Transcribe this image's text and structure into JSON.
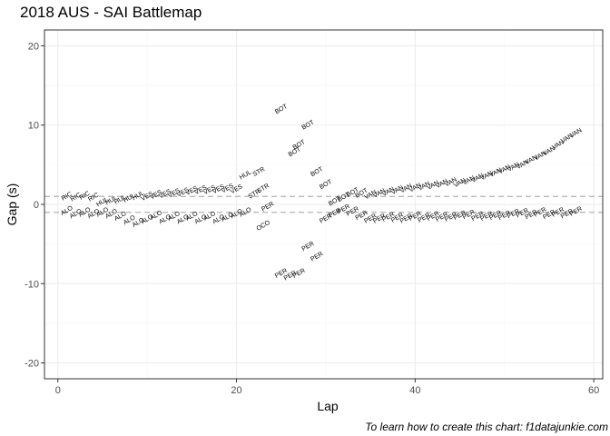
{
  "chart_data": {
    "type": "scatter",
    "title": "2018 AUS - SAI Battlemap",
    "xlabel": "Lap",
    "ylabel": "Gap (s)",
    "caption": "To learn how to create this chart: f1datajunkie.com",
    "xlim": [
      -1.5,
      61
    ],
    "ylim": [
      -22,
      22
    ],
    "xticks": [
      0,
      20,
      40,
      60
    ],
    "yticks": [
      -20,
      -10,
      0,
      10,
      20
    ],
    "grid": true,
    "reference_lines": [
      1,
      -1
    ],
    "label_angle": 30,
    "points": [
      {
        "x": 1,
        "y": 1.0,
        "label": "RIC"
      },
      {
        "x": 1,
        "y": -0.8,
        "label": "ALO"
      },
      {
        "x": 2,
        "y": 0.9,
        "label": "RIC"
      },
      {
        "x": 2,
        "y": -1.2,
        "label": "ALO"
      },
      {
        "x": 3,
        "y": 1.1,
        "label": "RIC"
      },
      {
        "x": 3,
        "y": -1.0,
        "label": "ALO"
      },
      {
        "x": 4,
        "y": 0.9,
        "label": "RIC"
      },
      {
        "x": 4,
        "y": -1.2,
        "label": "ALO"
      },
      {
        "x": 5,
        "y": 0.3,
        "label": "HUL"
      },
      {
        "x": 5,
        "y": -1.0,
        "label": "ALO"
      },
      {
        "x": 6,
        "y": 0.5,
        "label": "HUL"
      },
      {
        "x": 6,
        "y": -1.2,
        "label": "ALO"
      },
      {
        "x": 7,
        "y": 0.6,
        "label": "HUL"
      },
      {
        "x": 7,
        "y": -1.5,
        "label": "ALO"
      },
      {
        "x": 8,
        "y": 0.8,
        "label": "HUL"
      },
      {
        "x": 8,
        "y": -2.0,
        "label": "ALO"
      },
      {
        "x": 9,
        "y": 1.1,
        "label": "HUL"
      },
      {
        "x": 9,
        "y": -2.3,
        "label": "ALO"
      },
      {
        "x": 10,
        "y": 1.0,
        "label": "VES"
      },
      {
        "x": 10,
        "y": -1.9,
        "label": "ALO"
      },
      {
        "x": 11,
        "y": 1.2,
        "label": "VES"
      },
      {
        "x": 11,
        "y": -1.4,
        "label": "ALO"
      },
      {
        "x": 12,
        "y": 1.3,
        "label": "VES"
      },
      {
        "x": 12,
        "y": -1.9,
        "label": "ALO"
      },
      {
        "x": 13,
        "y": 1.4,
        "label": "VES"
      },
      {
        "x": 13,
        "y": -1.5,
        "label": "ALO"
      },
      {
        "x": 14,
        "y": 1.5,
        "label": "VES"
      },
      {
        "x": 14,
        "y": -1.9,
        "label": "ALO"
      },
      {
        "x": 15,
        "y": 1.7,
        "label": "VES"
      },
      {
        "x": 15,
        "y": -1.5,
        "label": "ALO"
      },
      {
        "x": 16,
        "y": 1.8,
        "label": "VES"
      },
      {
        "x": 16,
        "y": -1.9,
        "label": "ALO"
      },
      {
        "x": 17,
        "y": 1.8,
        "label": "VES"
      },
      {
        "x": 17,
        "y": -1.5,
        "label": "ALO"
      },
      {
        "x": 18,
        "y": 1.9,
        "label": "VES"
      },
      {
        "x": 18,
        "y": -1.9,
        "label": "ALO"
      },
      {
        "x": 19,
        "y": 2.0,
        "label": "VES"
      },
      {
        "x": 19,
        "y": -1.6,
        "label": "ALO"
      },
      {
        "x": 20,
        "y": 1.9,
        "label": "VES"
      },
      {
        "x": 20,
        "y": -1.2,
        "label": "ALO"
      },
      {
        "x": 21,
        "y": 3.7,
        "label": "HUL"
      },
      {
        "x": 21,
        "y": -1.0,
        "label": "ALO"
      },
      {
        "x": 22,
        "y": 1.3,
        "label": "STR"
      },
      {
        "x": 22.5,
        "y": 4.1,
        "label": "STR"
      },
      {
        "x": 23,
        "y": 2.0,
        "label": "STR"
      },
      {
        "x": 23.5,
        "y": -0.3,
        "label": "PER"
      },
      {
        "x": 23,
        "y": -2.7,
        "label": "OCO"
      },
      {
        "x": 25,
        "y": 12.0,
        "label": "BOT"
      },
      {
        "x": 25,
        "y": -8.7,
        "label": "PER"
      },
      {
        "x": 26,
        "y": -9.0,
        "label": "PER"
      },
      {
        "x": 26.5,
        "y": 6.6,
        "label": "BOT"
      },
      {
        "x": 27,
        "y": 7.5,
        "label": "BOT"
      },
      {
        "x": 27,
        "y": -8.7,
        "label": "PER"
      },
      {
        "x": 28,
        "y": 10.0,
        "label": "BOT"
      },
      {
        "x": 28,
        "y": -5.3,
        "label": "PER"
      },
      {
        "x": 29,
        "y": 4.1,
        "label": "BOT"
      },
      {
        "x": 29,
        "y": -6.6,
        "label": "PER"
      },
      {
        "x": 30,
        "y": 2.5,
        "label": "BOT"
      },
      {
        "x": 30,
        "y": -1.8,
        "label": "PER"
      },
      {
        "x": 31,
        "y": 0.4,
        "label": "BOT"
      },
      {
        "x": 31,
        "y": -1.1,
        "label": "PER"
      },
      {
        "x": 32,
        "y": 0.9,
        "label": "BOT"
      },
      {
        "x": 32,
        "y": -0.6,
        "label": "PER"
      },
      {
        "x": 33,
        "y": 1.5,
        "label": "BOT"
      },
      {
        "x": 33,
        "y": -0.9,
        "label": "PER"
      },
      {
        "x": 34,
        "y": 1.4,
        "label": "BOT"
      },
      {
        "x": 34,
        "y": -1.4,
        "label": "PER"
      },
      {
        "x": 35,
        "y": 1.2,
        "label": "VAN"
      },
      {
        "x": 35,
        "y": -1.8,
        "label": "PER"
      },
      {
        "x": 36,
        "y": 1.4,
        "label": "VAN"
      },
      {
        "x": 36,
        "y": -1.8,
        "label": "PER"
      },
      {
        "x": 37,
        "y": 1.6,
        "label": "VAN"
      },
      {
        "x": 37,
        "y": -1.6,
        "label": "PER"
      },
      {
        "x": 38,
        "y": 1.8,
        "label": "VAN"
      },
      {
        "x": 38,
        "y": -1.7,
        "label": "PER"
      },
      {
        "x": 39,
        "y": 2.0,
        "label": "VAN"
      },
      {
        "x": 39,
        "y": -1.8,
        "label": "PER"
      },
      {
        "x": 40,
        "y": 2.1,
        "label": "VAN"
      },
      {
        "x": 40,
        "y": -1.5,
        "label": "PER"
      },
      {
        "x": 41,
        "y": 2.3,
        "label": "VAN"
      },
      {
        "x": 41,
        "y": -1.7,
        "label": "PER"
      },
      {
        "x": 42,
        "y": 2.4,
        "label": "VAN"
      },
      {
        "x": 42,
        "y": -1.5,
        "label": "PER"
      },
      {
        "x": 43,
        "y": 2.6,
        "label": "VAN"
      },
      {
        "x": 43,
        "y": -1.6,
        "label": "PER"
      },
      {
        "x": 44,
        "y": 2.8,
        "label": "VAN"
      },
      {
        "x": 44,
        "y": -1.6,
        "label": "PER"
      },
      {
        "x": 45,
        "y": 2.7,
        "label": "VAN"
      },
      {
        "x": 45,
        "y": -1.4,
        "label": "PER"
      },
      {
        "x": 46,
        "y": 3.0,
        "label": "VAN"
      },
      {
        "x": 46,
        "y": -1.3,
        "label": "PER"
      },
      {
        "x": 47,
        "y": 3.3,
        "label": "VAN"
      },
      {
        "x": 47,
        "y": -1.5,
        "label": "PER"
      },
      {
        "x": 48,
        "y": 3.6,
        "label": "VAN"
      },
      {
        "x": 48,
        "y": -1.5,
        "label": "PER"
      },
      {
        "x": 49,
        "y": 4.0,
        "label": "VAN"
      },
      {
        "x": 49,
        "y": -1.4,
        "label": "PER"
      },
      {
        "x": 50,
        "y": 4.4,
        "label": "VAN"
      },
      {
        "x": 50,
        "y": -1.4,
        "label": "PER"
      },
      {
        "x": 51,
        "y": 4.7,
        "label": "VAN"
      },
      {
        "x": 51,
        "y": -1.2,
        "label": "PER"
      },
      {
        "x": 52,
        "y": 5.0,
        "label": "VAN"
      },
      {
        "x": 52,
        "y": -1.1,
        "label": "PER"
      },
      {
        "x": 53,
        "y": 5.6,
        "label": "VAN"
      },
      {
        "x": 53,
        "y": -1.3,
        "label": "PER"
      },
      {
        "x": 54,
        "y": 6.1,
        "label": "VAN"
      },
      {
        "x": 54,
        "y": -1.0,
        "label": "PER"
      },
      {
        "x": 55,
        "y": 6.7,
        "label": "VAN"
      },
      {
        "x": 55,
        "y": -1.3,
        "label": "PER"
      },
      {
        "x": 56,
        "y": 7.5,
        "label": "VAN"
      },
      {
        "x": 56,
        "y": -1.0,
        "label": "PER"
      },
      {
        "x": 57,
        "y": 8.3,
        "label": "VAN"
      },
      {
        "x": 57,
        "y": -1.2,
        "label": "PER"
      },
      {
        "x": 58,
        "y": 9.0,
        "label": "VAN"
      },
      {
        "x": 58,
        "y": -0.9,
        "label": "PER"
      }
    ],
    "colors": {
      "panel_border": "#333333",
      "grid_major": "#ebebeb",
      "grid_minor": "#f5f5f5",
      "reference_line": "#b3b3b3",
      "text": "#000000",
      "tick_text": "#4d4d4d"
    }
  }
}
